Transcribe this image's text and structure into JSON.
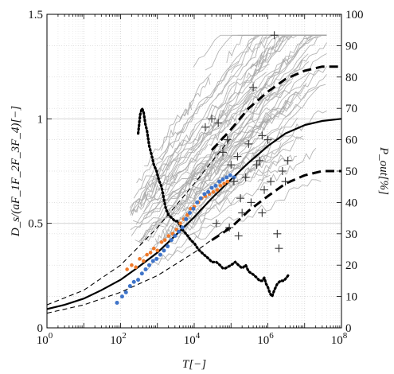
{
  "chart_data": {
    "type": "line",
    "title": "",
    "xlabel": "T[−]",
    "ylabel_left": "D_s/(aF_1F_2F_3F_4)[−]",
    "ylabel_right": "P_out[%]",
    "x_scale": "log10",
    "xlim": [
      1,
      100000000
    ],
    "ylim_left": [
      0,
      1.5
    ],
    "ylim_right": [
      0,
      100
    ],
    "grid": true,
    "x_ticks": [
      {
        "label": "10",
        "exp": "0"
      },
      {
        "label": "10",
        "exp": "2"
      },
      {
        "label": "10",
        "exp": "4"
      },
      {
        "label": "10",
        "exp": "6"
      },
      {
        "label": "10",
        "exp": "8"
      }
    ],
    "y_ticks_left": [
      "0",
      "0.5",
      "1",
      "1.5"
    ],
    "y_ticks_right": [
      "0",
      "10",
      "20",
      "30",
      "40",
      "50",
      "60",
      "70",
      "80",
      "90",
      "100"
    ],
    "series": [
      {
        "role": "mean-fit",
        "style": "solid-black",
        "x": [
          1,
          3,
          10,
          30,
          100,
          300,
          1000,
          3000,
          10000,
          30000,
          100000,
          300000,
          1000000,
          3000000,
          10000000,
          30000000,
          100000000
        ],
        "y": [
          0.09,
          0.11,
          0.14,
          0.18,
          0.23,
          0.29,
          0.36,
          0.44,
          0.53,
          0.62,
          0.71,
          0.79,
          0.87,
          0.93,
          0.97,
          0.99,
          1.0
        ]
      },
      {
        "role": "fit-upper-band",
        "style": "thin-dashed-black",
        "x": [
          1,
          10,
          100,
          1000,
          10000,
          100000
        ],
        "y": [
          0.11,
          0.18,
          0.3,
          0.48,
          0.69,
          0.91
        ]
      },
      {
        "role": "fit-lower-band",
        "style": "thin-dashed-black",
        "x": [
          1,
          10,
          100,
          1000,
          10000,
          100000
        ],
        "y": [
          0.07,
          0.11,
          0.17,
          0.25,
          0.36,
          0.49
        ]
      },
      {
        "role": "upper-envelope",
        "style": "thick-dashed-black",
        "x": [
          30000,
          100000,
          300000,
          1000000,
          3000000,
          10000000,
          30000000,
          100000000
        ],
        "y": [
          0.85,
          0.95,
          1.05,
          1.13,
          1.19,
          1.23,
          1.25,
          1.25
        ]
      },
      {
        "role": "lower-envelope",
        "style": "thick-dashed-black",
        "x": [
          30000,
          100000,
          300000,
          1000000,
          3000000,
          10000000,
          30000000,
          100000000
        ],
        "y": [
          0.42,
          0.48,
          0.56,
          0.63,
          0.69,
          0.73,
          0.75,
          0.75
        ]
      },
      {
        "role": "P_out",
        "axis": "right",
        "style": "dotted-black",
        "x": [
          300,
          340,
          380,
          420,
          470,
          520,
          600,
          700,
          800,
          950,
          1100,
          1300,
          1500,
          1700,
          2000,
          2500,
          3000,
          3500,
          4000,
          5000,
          6000,
          7000,
          8000,
          10000,
          13000,
          16000,
          20000,
          25000,
          30000,
          40000,
          50000,
          60000,
          70000,
          100000,
          130000,
          160000,
          200000,
          250000,
          300000,
          400000,
          500000,
          600000,
          700000,
          800000,
          900000,
          1000000,
          1150000,
          1300000,
          1500000,
          1800000,
          2200000,
          2700000,
          3200000,
          3700000
        ],
        "y": [
          62,
          68,
          70,
          69,
          65,
          63,
          58,
          55,
          52,
          50,
          47,
          45,
          41,
          38,
          36,
          35,
          34,
          34,
          33,
          31,
          30,
          29,
          28,
          27,
          25,
          24,
          23,
          22,
          21,
          21,
          20,
          19,
          19,
          20,
          21,
          20,
          19,
          20,
          18,
          17,
          16,
          15,
          15,
          16,
          14,
          13,
          11,
          10,
          12,
          14,
          15,
          15,
          16,
          17
        ]
      }
    ],
    "scatter_orange": {
      "x": [
        150,
        200,
        260,
        330,
        420,
        520,
        650,
        800,
        1000,
        1300,
        1600,
        2000,
        2600,
        3300,
        4200,
        5200,
        6500,
        8000,
        10000,
        13000,
        16000,
        20000,
        26000,
        33000,
        42000,
        52000,
        65000,
        80000
      ],
      "y": [
        0.28,
        0.3,
        0.29,
        0.33,
        0.32,
        0.35,
        0.36,
        0.38,
        0.37,
        0.41,
        0.42,
        0.44,
        0.45,
        0.47,
        0.5,
        0.52,
        0.54,
        0.57,
        0.58,
        0.6,
        0.62,
        0.63,
        0.64,
        0.65,
        0.66,
        0.68,
        0.69,
        0.7
      ]
    },
    "scatter_blue": {
      "x": [
        80,
        110,
        140,
        180,
        230,
        300,
        380,
        480,
        600,
        760,
        950,
        1200,
        1500,
        1900,
        2400,
        3000,
        3800,
        4800,
        6000,
        7600,
        9500,
        12000,
        15000,
        19000,
        24000,
        30000,
        38000,
        48000,
        60000,
        76000,
        95000,
        120000
      ],
      "y": [
        0.12,
        0.15,
        0.17,
        0.2,
        0.22,
        0.23,
        0.26,
        0.28,
        0.3,
        0.32,
        0.33,
        0.35,
        0.37,
        0.39,
        0.42,
        0.44,
        0.46,
        0.48,
        0.52,
        0.55,
        0.57,
        0.6,
        0.62,
        0.64,
        0.65,
        0.67,
        0.68,
        0.7,
        0.71,
        0.72,
        0.73,
        0.72
      ]
    },
    "scatter_plus": {
      "x": [
        20000,
        30000,
        45000,
        60000,
        80000,
        100000,
        120000,
        150000,
        180000,
        200000,
        250000,
        300000,
        350000,
        400000,
        500000,
        600000,
        700000,
        800000,
        1000000,
        1200000,
        1500000,
        1800000,
        2000000,
        2500000,
        3000000,
        3500000,
        40000,
        90000,
        160000,
        700000
      ],
      "y": [
        0.96,
        1.0,
        0.98,
        0.84,
        0.9,
        0.78,
        0.7,
        0.82,
        0.62,
        0.55,
        0.72,
        0.88,
        0.6,
        1.15,
        0.78,
        0.8,
        0.55,
        0.66,
        0.9,
        0.7,
        1.4,
        0.45,
        0.38,
        0.75,
        0.7,
        0.8,
        0.5,
        0.48,
        0.44,
        0.92
      ]
    },
    "trajectories": {
      "count": 120,
      "color": "#a8a8a8",
      "description_note": "gray individual curves rising from lower-left to upper-right"
    }
  }
}
